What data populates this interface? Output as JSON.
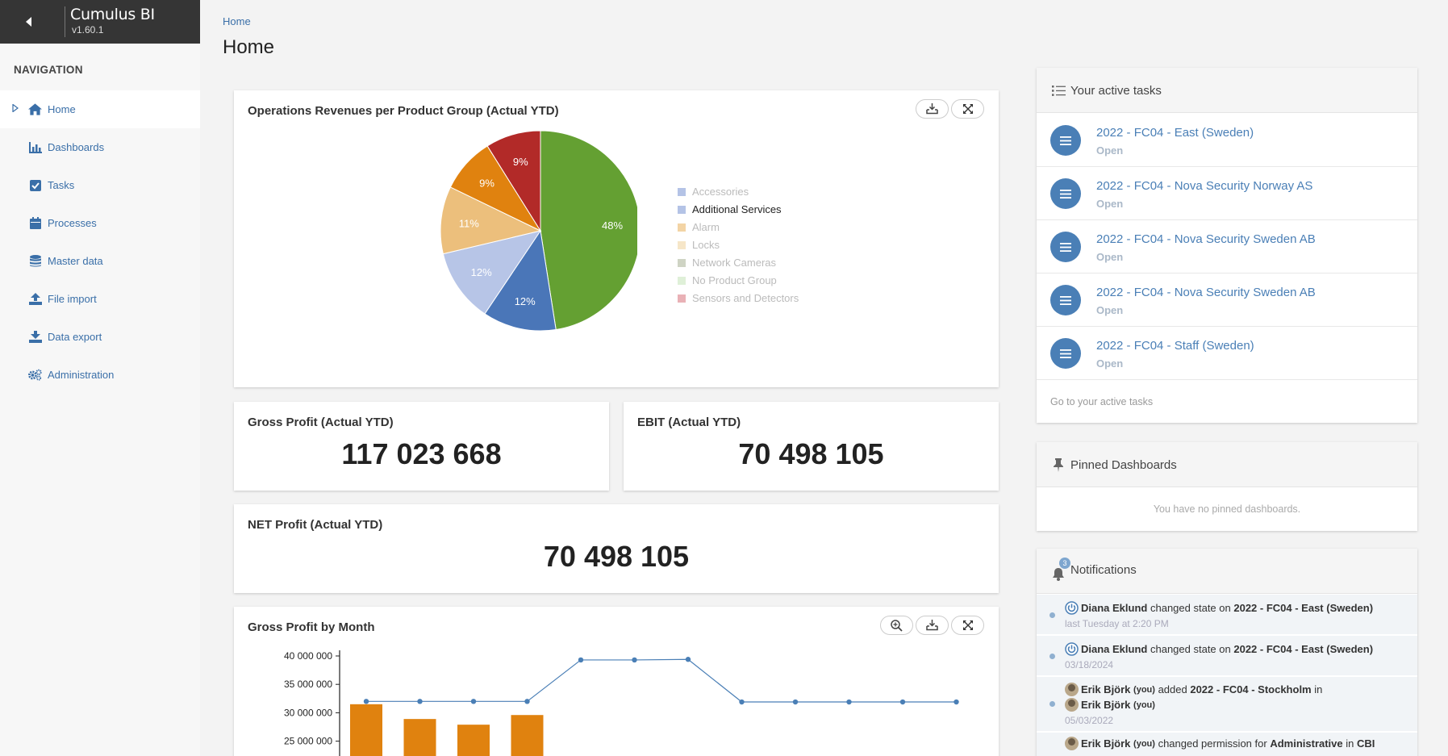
{
  "app": {
    "name": "Cumulus BI",
    "version": "v1.60.1",
    "collapse_icon": "caret-left-icon"
  },
  "nav": {
    "title": "NAVIGATION",
    "items": [
      {
        "label": "Home",
        "icon": "home-icon",
        "active": true
      },
      {
        "label": "Dashboards",
        "icon": "bar-chart-icon"
      },
      {
        "label": "Tasks",
        "icon": "checkbox-icon"
      },
      {
        "label": "Processes",
        "icon": "calendar-icon"
      },
      {
        "label": "Master data",
        "icon": "database-icon"
      },
      {
        "label": "File import",
        "icon": "upload-icon"
      },
      {
        "label": "Data export",
        "icon": "download-icon"
      },
      {
        "label": "Administration",
        "icon": "gears-icon"
      }
    ]
  },
  "header": {
    "breadcrumb": "Home",
    "title": "Home"
  },
  "pie_card": {
    "title": "Operations Revenues per Product Group (Actual YTD)",
    "legend": [
      {
        "label": "Accessories",
        "color": "#b4c3e6",
        "active": false
      },
      {
        "label": "Additional Services",
        "color": "#b4c3e6",
        "active": true
      },
      {
        "label": "Alarm",
        "color": "#f3d4a5",
        "active": false
      },
      {
        "label": "Locks",
        "color": "#f6e6c8",
        "active": false
      },
      {
        "label": "Network Cameras",
        "color": "#cfd4c4",
        "active": false
      },
      {
        "label": "No Product Group",
        "color": "#dff0d8",
        "active": false
      },
      {
        "label": "Sensors and Detectors",
        "color": "#e9b1b6",
        "active": false
      }
    ]
  },
  "kpis": {
    "gross_profit": {
      "title": "Gross Profit (Actual YTD)",
      "value": "117 023 668"
    },
    "ebit": {
      "title": "EBIT (Actual YTD)",
      "value": "70 498 105"
    },
    "net_profit": {
      "title": "NET Profit (Actual YTD)",
      "value": "70 498 105"
    }
  },
  "monthly_card": {
    "title": "Gross Profit by Month"
  },
  "chart_data": [
    {
      "type": "pie",
      "title": "Operations Revenues per Product Group (Actual YTD)",
      "slices": [
        {
          "label": "48%",
          "value": 48,
          "color": "#64a032"
        },
        {
          "label": "12%",
          "value": 12,
          "color": "#4a76b8"
        },
        {
          "label": "12%",
          "value": 12,
          "color": "#b7c5e7"
        },
        {
          "label": "11%",
          "value": 11,
          "color": "#ecbf7c"
        },
        {
          "label": "9%",
          "value": 9,
          "color": "#e0820f"
        },
        {
          "label": "9%",
          "value": 9,
          "color": "#b22a28"
        }
      ]
    },
    {
      "type": "bar",
      "title": "Gross Profit by Month",
      "y_ticks": [
        "40 000 000",
        "35 000 000",
        "30 000 000",
        "25 000 000"
      ],
      "ylim": [
        22000000,
        41000000
      ],
      "bar_color": "#e0820f",
      "line_color": "#4a7fb6",
      "bars": [
        31500000,
        28900000,
        27900000,
        29600000
      ],
      "line": [
        32000000,
        32000000,
        32000000,
        32000000,
        39300000,
        39300000,
        39400000,
        31900000,
        31900000,
        31900000,
        31900000,
        31900000
      ]
    }
  ],
  "tasks_panel": {
    "title": "Your active tasks",
    "items": [
      {
        "title": "2022 - FC04 - East (Sweden)",
        "status": "Open"
      },
      {
        "title": "2022 - FC04 - Nova Security Norway AS",
        "status": "Open"
      },
      {
        "title": "2022 - FC04 - Nova Security Sweden AB",
        "status": "Open"
      },
      {
        "title": "2022 - FC04 - Nova Security Sweden AB",
        "status": "Open"
      },
      {
        "title": "2022 - FC04 - Staff (Sweden)",
        "status": "Open"
      }
    ],
    "footer_link": "Go to your active tasks"
  },
  "pinned_panel": {
    "title": "Pinned Dashboards",
    "empty": "You have no pinned dashboards."
  },
  "notifications": {
    "title": "Notifications",
    "badge": "3",
    "items": [
      {
        "user": "Diana Eklund",
        "action": "changed state on",
        "target": "2022 - FC04 - East (Sweden)",
        "time": "last Tuesday at 2:20 PM"
      },
      {
        "user": "Diana Eklund",
        "action": "changed state on",
        "target": "2022 - FC04 - East (Sweden)",
        "time": "03/18/2024"
      },
      {
        "user": "Erik Björk",
        "you": "(you)",
        "action": "added",
        "target": "2022 - FC04 - Stockholm",
        "tail": "in",
        "user2": "Erik Björk",
        "you2": "(you)",
        "time": "05/03/2022"
      },
      {
        "user": "Erik Björk",
        "you": "(you)",
        "action": "changed permission for",
        "target": "Administrative",
        "tail": "in",
        "target2": "CBI"
      }
    ]
  }
}
